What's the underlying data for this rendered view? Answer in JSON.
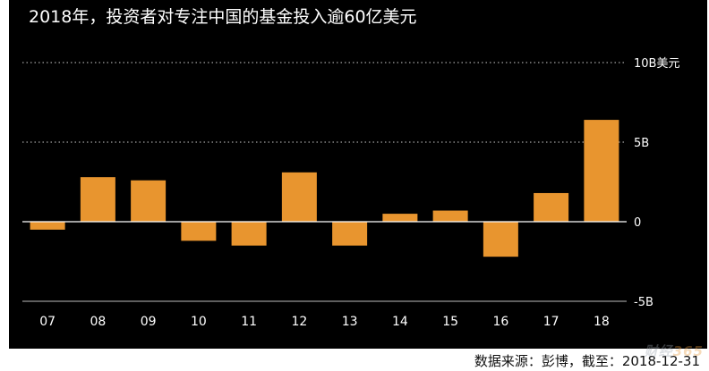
{
  "chart_data": {
    "type": "bar",
    "title": "2018年，投资者对专注中国的基金投入逾60亿美元",
    "categories": [
      "07",
      "08",
      "09",
      "10",
      "11",
      "12",
      "13",
      "14",
      "15",
      "16",
      "17",
      "18"
    ],
    "values": [
      -0.5,
      2.8,
      2.6,
      -1.2,
      -1.5,
      3.1,
      -1.5,
      0.5,
      0.7,
      -2.2,
      1.8,
      6.4
    ],
    "ylim": [
      -5,
      10
    ],
    "yticks": [
      {
        "value": 10,
        "label": "10B美元"
      },
      {
        "value": 5,
        "label": "5B"
      },
      {
        "value": 0,
        "label": "0"
      },
      {
        "value": -5,
        "label": "-5B"
      }
    ],
    "grid": true,
    "colors": {
      "bar": "#E8952F",
      "background": "#000000",
      "text": "#FFFFFF",
      "axis": "#FFFFFF",
      "grid": "#FFFFFF"
    }
  },
  "source": "数据来源：彭博，截至：2018-12-31",
  "watermark": {
    "part1": "财经",
    "part2": "365"
  }
}
